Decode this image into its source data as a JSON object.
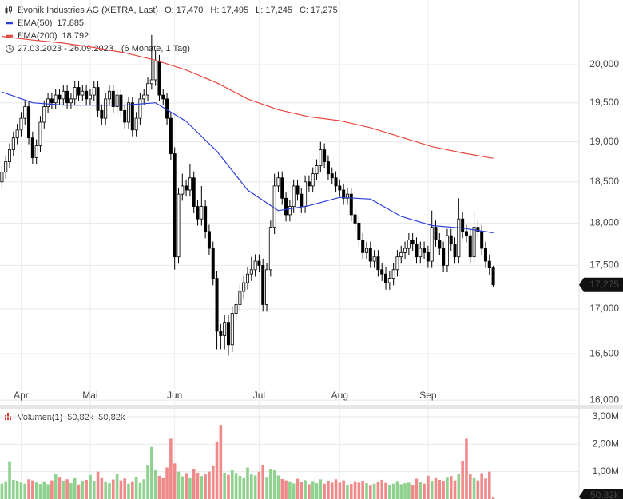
{
  "chart_data": {
    "type": "candlestick",
    "title": "Evonik Industries AG (XETRA, Last)",
    "ohlc_header": [
      "O: 17,470",
      "H: 17,495",
      "L: 17,245",
      "C: 17,275"
    ],
    "period": "27.03.2023 - 26.09.2023",
    "period_note": "(6 Monate, 1 Tag)",
    "log_scale": true,
    "grid": true,
    "ylim": [
      15.95,
      20.88
    ],
    "yticks": [
      {
        "value": 16,
        "label": "16,000"
      },
      {
        "value": 16.5,
        "label": "16,500"
      },
      {
        "value": 17,
        "label": "17,000"
      },
      {
        "value": 17.5,
        "label": "17,500"
      },
      {
        "value": 18,
        "label": "18,000"
      },
      {
        "value": 18.5,
        "label": "18,500"
      },
      {
        "value": 19,
        "label": "19,000"
      },
      {
        "value": 19.5,
        "label": "19,500"
      },
      {
        "value": 20,
        "label": "20,000"
      }
    ],
    "last_label": "17,275",
    "up_color": "#ffffff",
    "down_color": "#000000",
    "categories": [
      null,
      null,
      null,
      null,
      null,
      "Apr",
      null,
      null,
      null,
      null,
      null,
      null,
      null,
      null,
      null,
      null,
      null,
      null,
      null,
      null,
      null,
      null,
      null,
      "Mai",
      null,
      null,
      null,
      null,
      null,
      null,
      null,
      null,
      null,
      null,
      null,
      null,
      null,
      null,
      null,
      null,
      null,
      null,
      null,
      null,
      null,
      "Jun",
      null,
      null,
      null,
      null,
      null,
      null,
      null,
      null,
      null,
      null,
      null,
      null,
      null,
      null,
      null,
      null,
      null,
      null,
      null,
      null,
      null,
      "Jul",
      null,
      null,
      null,
      null,
      null,
      null,
      null,
      null,
      null,
      null,
      null,
      null,
      null,
      null,
      null,
      null,
      null,
      null,
      null,
      null,
      "Aug",
      null,
      null,
      null,
      null,
      null,
      null,
      null,
      null,
      null,
      null,
      null,
      null,
      null,
      null,
      null,
      null,
      null,
      null,
      null,
      null,
      null,
      null,
      "Sep",
      null,
      null,
      null,
      null,
      null,
      null,
      null,
      null,
      null,
      null,
      null,
      null,
      null,
      null,
      null,
      null,
      null
    ],
    "ohlc": [
      [
        18.5,
        18.7,
        18.42,
        18.62
      ],
      [
        18.62,
        18.83,
        18.54,
        18.75
      ],
      [
        18.75,
        18.98,
        18.67,
        18.9
      ],
      [
        18.9,
        19.13,
        18.82,
        19.05
      ],
      [
        19.05,
        19.23,
        18.97,
        19.15
      ],
      [
        19.15,
        19.38,
        19.07,
        19.3
      ],
      [
        19.3,
        19.53,
        19.22,
        19.45
      ],
      [
        19.45,
        19.53,
        18.97,
        19.05
      ],
      [
        19.05,
        19.13,
        18.72,
        18.8
      ],
      [
        18.8,
        19.03,
        18.72,
        18.95
      ],
      [
        18.95,
        19.33,
        18.87,
        19.25
      ],
      [
        19.25,
        19.53,
        19.17,
        19.45
      ],
      [
        19.45,
        19.63,
        19.37,
        19.55
      ],
      [
        19.55,
        19.63,
        19.42,
        19.5
      ],
      [
        19.5,
        19.68,
        19.42,
        19.6
      ],
      [
        19.6,
        19.68,
        19.47,
        19.55
      ],
      [
        19.55,
        19.73,
        19.47,
        19.65
      ],
      [
        19.65,
        19.73,
        19.42,
        19.5
      ],
      [
        19.5,
        19.63,
        19.42,
        19.55
      ],
      [
        19.55,
        19.78,
        19.47,
        19.7
      ],
      [
        19.7,
        19.78,
        19.52,
        19.6
      ],
      [
        19.6,
        19.73,
        19.52,
        19.65
      ],
      [
        19.65,
        19.73,
        19.47,
        19.55
      ],
      [
        19.55,
        19.68,
        19.47,
        19.6
      ],
      [
        19.6,
        19.78,
        19.52,
        19.7
      ],
      [
        19.7,
        19.78,
        19.32,
        19.4
      ],
      [
        19.4,
        19.48,
        19.22,
        19.3
      ],
      [
        19.3,
        19.63,
        19.22,
        19.55
      ],
      [
        19.55,
        19.73,
        19.47,
        19.65
      ],
      [
        19.65,
        19.73,
        19.37,
        19.45
      ],
      [
        19.45,
        19.68,
        19.37,
        19.6
      ],
      [
        19.6,
        19.68,
        19.32,
        19.4
      ],
      [
        19.4,
        19.48,
        19.17,
        19.25
      ],
      [
        19.25,
        19.58,
        19.17,
        19.5
      ],
      [
        19.5,
        19.58,
        19.07,
        19.15
      ],
      [
        19.15,
        19.38,
        19.07,
        19.3
      ],
      [
        19.3,
        19.63,
        19.22,
        19.55
      ],
      [
        19.55,
        19.68,
        19.47,
        19.6
      ],
      [
        19.6,
        19.83,
        19.52,
        19.75
      ],
      [
        19.75,
        20.4,
        19.67,
        19.8
      ],
      [
        19.8,
        20.2,
        19.72,
        20.05
      ],
      [
        20.05,
        20.13,
        19.52,
        19.6
      ],
      [
        19.6,
        19.68,
        19.47,
        19.55
      ],
      [
        19.55,
        19.63,
        19.22,
        19.3
      ],
      [
        19.3,
        19.38,
        18.77,
        18.85
      ],
      [
        18.85,
        18.93,
        17.45,
        17.6
      ],
      [
        17.6,
        18.43,
        17.52,
        18.35
      ],
      [
        18.35,
        18.6,
        18.27,
        18.45
      ],
      [
        18.45,
        18.53,
        18.32,
        18.4
      ],
      [
        18.4,
        18.72,
        18.32,
        18.55
      ],
      [
        18.55,
        18.63,
        18.12,
        18.2
      ],
      [
        18.2,
        18.28,
        17.97,
        18.05
      ],
      [
        18.05,
        18.45,
        17.97,
        18.2
      ],
      [
        18.2,
        18.28,
        17.82,
        17.9
      ],
      [
        17.9,
        17.98,
        17.62,
        17.7
      ],
      [
        17.7,
        17.78,
        17.27,
        17.35
      ],
      [
        17.35,
        17.43,
        16.55,
        16.75
      ],
      [
        16.75,
        16.83,
        16.55,
        16.7
      ],
      [
        16.7,
        16.93,
        16.55,
        16.85
      ],
      [
        16.85,
        16.93,
        16.48,
        16.6
      ],
      [
        16.6,
        17.03,
        16.52,
        16.95
      ],
      [
        16.95,
        17.13,
        16.87,
        17.05
      ],
      [
        17.05,
        17.28,
        16.97,
        17.2
      ],
      [
        17.2,
        17.38,
        17.12,
        17.3
      ],
      [
        17.3,
        17.48,
        17.22,
        17.4
      ],
      [
        17.4,
        17.6,
        17.32,
        17.45
      ],
      [
        17.45,
        17.63,
        17.37,
        17.55
      ],
      [
        17.55,
        17.63,
        17.42,
        17.5
      ],
      [
        17.5,
        17.58,
        16.97,
        17.05
      ],
      [
        17.05,
        17.53,
        16.97,
        17.45
      ],
      [
        17.45,
        18.03,
        17.37,
        17.95
      ],
      [
        17.95,
        18.6,
        17.87,
        18.45
      ],
      [
        18.45,
        18.63,
        18.37,
        18.55
      ],
      [
        18.55,
        18.63,
        18.22,
        18.3
      ],
      [
        18.3,
        18.38,
        18.02,
        18.1
      ],
      [
        18.1,
        18.28,
        18.02,
        18.2
      ],
      [
        18.2,
        18.53,
        18.12,
        18.45
      ],
      [
        18.45,
        18.53,
        18.27,
        18.35
      ],
      [
        18.35,
        18.43,
        18.12,
        18.2
      ],
      [
        18.2,
        18.58,
        18.12,
        18.5
      ],
      [
        18.5,
        18.58,
        18.37,
        18.45
      ],
      [
        18.45,
        18.68,
        18.37,
        18.6
      ],
      [
        18.6,
        18.78,
        18.52,
        18.7
      ],
      [
        18.7,
        19.0,
        18.62,
        18.9
      ],
      [
        18.9,
        18.98,
        18.67,
        18.75
      ],
      [
        18.75,
        18.83,
        18.52,
        18.6
      ],
      [
        18.6,
        18.68,
        18.47,
        18.55
      ],
      [
        18.55,
        18.63,
        18.37,
        18.45
      ],
      [
        18.45,
        18.53,
        18.32,
        18.4
      ],
      [
        18.4,
        18.48,
        18.22,
        18.3
      ],
      [
        18.3,
        18.43,
        18.22,
        18.35
      ],
      [
        18.35,
        18.43,
        18.02,
        18.1
      ],
      [
        18.1,
        18.18,
        17.92,
        18.0
      ],
      [
        18.0,
        18.08,
        17.72,
        17.8
      ],
      [
        17.8,
        17.88,
        17.57,
        17.65
      ],
      [
        17.65,
        17.78,
        17.57,
        17.7
      ],
      [
        17.7,
        17.78,
        17.47,
        17.55
      ],
      [
        17.55,
        17.68,
        17.47,
        17.6
      ],
      [
        17.6,
        17.68,
        17.37,
        17.45
      ],
      [
        17.45,
        17.53,
        17.32,
        17.4
      ],
      [
        17.4,
        17.48,
        17.22,
        17.3
      ],
      [
        17.3,
        17.43,
        17.22,
        17.35
      ],
      [
        17.35,
        17.53,
        17.27,
        17.45
      ],
      [
        17.45,
        17.68,
        17.37,
        17.6
      ],
      [
        17.6,
        17.73,
        17.52,
        17.65
      ],
      [
        17.65,
        17.78,
        17.57,
        17.7
      ],
      [
        17.7,
        17.88,
        17.62,
        17.8
      ],
      [
        17.8,
        17.88,
        17.67,
        17.75
      ],
      [
        17.75,
        17.83,
        17.52,
        17.6
      ],
      [
        17.6,
        17.78,
        17.52,
        17.7
      ],
      [
        17.7,
        17.78,
        17.57,
        17.65
      ],
      [
        17.65,
        17.73,
        17.47,
        17.55
      ],
      [
        17.55,
        18.15,
        17.47,
        17.95
      ],
      [
        17.95,
        18.03,
        17.72,
        17.8
      ],
      [
        17.8,
        17.88,
        17.62,
        17.7
      ],
      [
        17.7,
        17.78,
        17.42,
        17.5
      ],
      [
        17.5,
        17.93,
        17.42,
        17.85
      ],
      [
        17.85,
        17.93,
        17.67,
        17.75
      ],
      [
        17.75,
        17.83,
        17.52,
        17.6
      ],
      [
        17.6,
        18.3,
        17.52,
        18.05
      ],
      [
        18.05,
        18.13,
        17.82,
        17.9
      ],
      [
        17.9,
        17.98,
        17.77,
        17.85
      ],
      [
        17.85,
        17.93,
        17.52,
        17.6
      ],
      [
        17.6,
        18.15,
        17.52,
        17.95
      ],
      [
        17.95,
        18.03,
        17.82,
        17.9
      ],
      [
        17.9,
        17.98,
        17.62,
        17.7
      ],
      [
        17.7,
        17.78,
        17.47,
        17.55
      ],
      [
        17.55,
        17.63,
        17.39,
        17.47
      ],
      [
        17.47,
        17.495,
        17.245,
        17.275
      ]
    ],
    "lines": [
      {
        "name": "EMA(50)",
        "color": "#2b3fd8",
        "value_label": "17,885",
        "x": [
          0,
          8,
          16,
          24,
          32,
          40,
          48,
          56,
          64,
          72,
          80,
          88,
          96,
          104,
          112,
          120,
          128
        ],
        "values": [
          19.64,
          19.5,
          19.47,
          19.47,
          19.47,
          19.5,
          19.26,
          18.88,
          18.4,
          18.15,
          18.21,
          18.31,
          18.29,
          18.08,
          17.97,
          17.94,
          17.885
        ]
      },
      {
        "name": "EMA(200)",
        "color": "#e8473f",
        "value_label": "18,792",
        "x": [
          0,
          8,
          16,
          24,
          32,
          40,
          48,
          56,
          64,
          72,
          80,
          88,
          96,
          104,
          112,
          120,
          128
        ],
        "values": [
          20.38,
          20.33,
          20.29,
          20.23,
          20.16,
          20.06,
          19.93,
          19.76,
          19.55,
          19.41,
          19.32,
          19.27,
          19.18,
          19.06,
          18.94,
          18.86,
          18.792
        ]
      }
    ],
    "volume": {
      "name": "Volumen(1)",
      "last_label": "50,82k",
      "up_color": "#8fd18f",
      "down_color": "#f08a8a",
      "ylim": [
        0,
        3290000
      ],
      "yticks": [
        {
          "value": 1000000,
          "label": "1,00M"
        },
        {
          "value": 2000000,
          "label": "2,00M"
        },
        {
          "value": 3000000,
          "label": "3,00M"
        }
      ],
      "values": [
        560000,
        620000,
        1350000,
        700000,
        650000,
        600000,
        560000,
        720000,
        680000,
        610000,
        550000,
        620000,
        540000,
        680000,
        900000,
        780000,
        650000,
        720000,
        580000,
        760000,
        530000,
        640000,
        700000,
        880000,
        640000,
        1000000,
        760000,
        620000,
        580000,
        710000,
        900000,
        680000,
        750000,
        560000,
        620000,
        800000,
        590000,
        720000,
        1250000,
        1900000,
        1050000,
        850000,
        760000,
        1150000,
        2200000,
        1300000,
        1000000,
        830000,
        920000,
        760000,
        1080000,
        940000,
        840000,
        900000,
        1000000,
        1200000,
        2100000,
        2700000,
        960000,
        880000,
        1050000,
        920000,
        850000,
        760000,
        1150000,
        900000,
        860000,
        1000000,
        1250000,
        780000,
        1100000,
        1050000,
        860000,
        730000,
        680000,
        620000,
        570000,
        740000,
        610000,
        690000,
        540000,
        630000,
        580000,
        720000,
        560000,
        650000,
        600000,
        720000,
        600000,
        680000,
        520000,
        550000,
        620000,
        600000,
        660000,
        580000,
        490000,
        560000,
        610000,
        700000,
        590000,
        520000,
        560000,
        630000,
        540000,
        580000,
        600000,
        520000,
        740000,
        610000,
        560000,
        850000,
        640000,
        760000,
        700000,
        640000,
        780000,
        840000,
        680000,
        900000,
        1400000,
        2200000,
        900000,
        760000,
        680000,
        920000,
        750000,
        1000000,
        50820
      ]
    }
  }
}
